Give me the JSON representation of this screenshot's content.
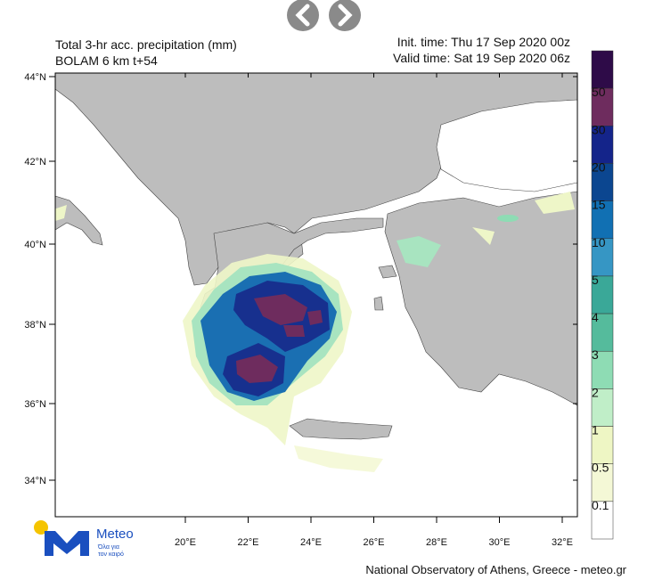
{
  "header": {
    "title": "Total 3-hr acc. precipitation (mm)",
    "subtitle": "BOLAM 6 km t+54",
    "init_time": "Init. time: Thu 17 Sep 2020 00z",
    "valid_time": "Valid time: Sat 19 Sep 2020 06z"
  },
  "axes": {
    "lat_labels": [
      "44°N",
      "42°N",
      "40°N",
      "38°N",
      "36°N",
      "34°N"
    ],
    "lon_labels": [
      "20°E",
      "22°E",
      "24°E",
      "26°E",
      "28°E",
      "30°E",
      "32°E"
    ]
  },
  "colorbar": {
    "labels": [
      "50",
      "30",
      "20",
      "15",
      "10",
      "5",
      "4",
      "3",
      "2",
      "1",
      "0.5",
      "0.1"
    ]
  },
  "logo": {
    "name": "Meteo",
    "tagline": [
      "Όλα για",
      "τον καιρό"
    ]
  },
  "footer": "National Observatory of Athens, Greece - meteo.gr"
}
